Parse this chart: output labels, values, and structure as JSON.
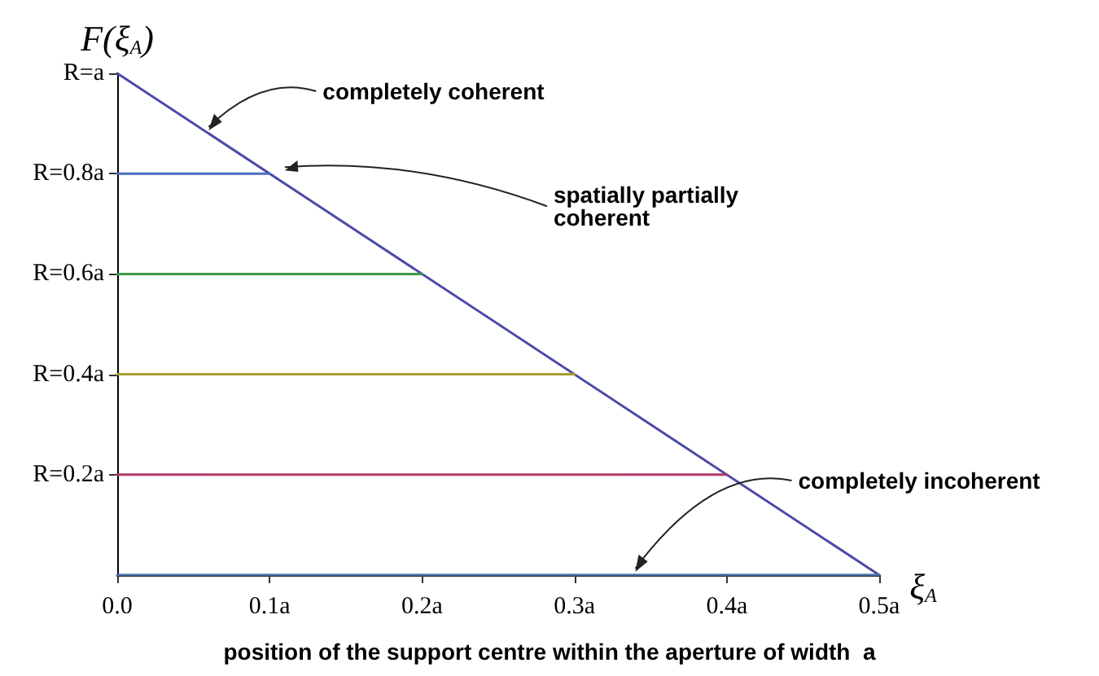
{
  "chart_data": {
    "type": "line",
    "ylabel": "F(ξ$_{A}$)",
    "xlabel": "ξ$_{A}$",
    "xlim": [
      0,
      0.5
    ],
    "ylim": [
      0,
      1
    ],
    "xticks": [
      {
        "value": 0,
        "label": "0.0"
      },
      {
        "value": 0.1,
        "label": "0.1a"
      },
      {
        "value": 0.2,
        "label": "0.2a"
      },
      {
        "value": 0.3,
        "label": "0.3a"
      },
      {
        "value": 0.4,
        "label": "0.4a"
      },
      {
        "value": 0.5,
        "label": "0.5a"
      }
    ],
    "yticks": [
      {
        "value": 0.2,
        "label": "R=0.2a"
      },
      {
        "value": 0.4,
        "label": "R=0.4a"
      },
      {
        "value": 0.6,
        "label": "R=0.6a"
      },
      {
        "value": 0.8,
        "label": "R=0.8a"
      },
      {
        "value": 1,
        "label": "R=a"
      }
    ],
    "series": [
      {
        "color": "#4b4ba8",
        "x": [
          0,
          0.5
        ],
        "values": [
          1,
          0
        ]
      },
      {
        "color": "#4a6cc0",
        "x": [
          0,
          0.1
        ],
        "values": [
          0.8,
          0.8
        ]
      },
      {
        "color": "#3c9a4a",
        "x": [
          0,
          0.2
        ],
        "values": [
          0.6,
          0.6
        ]
      },
      {
        "color": "#a8a030",
        "x": [
          0,
          0.3
        ],
        "values": [
          0.4,
          0.4
        ]
      },
      {
        "color": "#b03a6a",
        "x": [
          0,
          0.4
        ],
        "values": [
          0.2,
          0.2
        ]
      },
      {
        "color": "#4a70a8",
        "x": [
          0,
          0.5
        ],
        "values": [
          0,
          0
        ]
      }
    ],
    "annotations": [
      {
        "text": "completely coherent",
        "x": 0.06,
        "y": 0.88
      },
      {
        "text": "spatially partially\ncoherent",
        "x": 0.11,
        "y": 0.8
      },
      {
        "text": "completely incoherent",
        "x": 0.34,
        "y": 0
      },
      "position of the support centre within the aperture of width  a"
    ],
    "marker": "none",
    "line_style": "solid",
    "grid": false
  }
}
